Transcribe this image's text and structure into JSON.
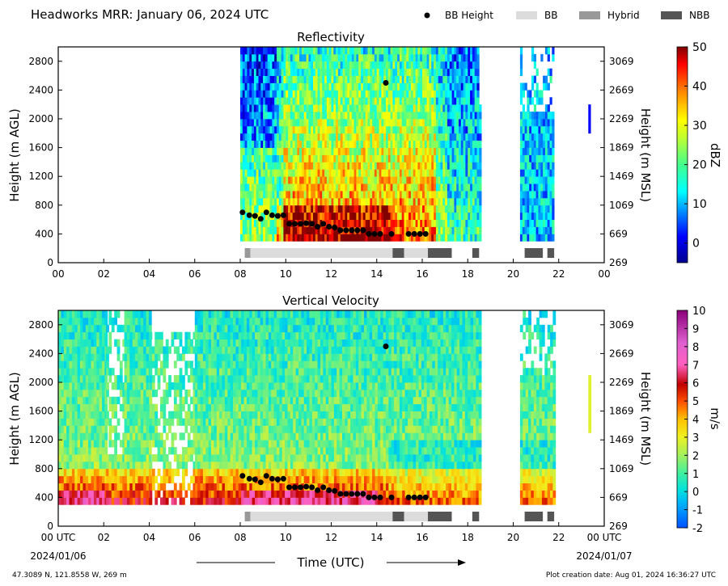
{
  "header": {
    "title": "Headworks MRR:  January 06, 2024 UTC",
    "legend": [
      {
        "label": "BB Height",
        "kind": "marker",
        "color": "#000000"
      },
      {
        "label": "BB",
        "kind": "bar",
        "color": "#dcdcdc"
      },
      {
        "label": "Hybrid",
        "kind": "bar",
        "color": "#999999"
      },
      {
        "label": "NBB",
        "kind": "bar",
        "color": "#555555"
      }
    ]
  },
  "footer": {
    "location": "47.3089 N, 121.8558 W, 269 m",
    "creation": "Plot creation date: Aug 01, 2024 16:36:27 UTC",
    "xlabel": "Time (UTC)",
    "start_tick": "00 UTC",
    "end_tick": "00 UTC",
    "start_date": "2024/01/06",
    "end_date": "2024/01/07"
  },
  "chart_data": [
    {
      "type": "heatmap",
      "title": "Reflectivity",
      "xlabel": "",
      "ylabel": "Height (m AGL)",
      "ylabel_right": "Height (m MSL)",
      "colorbar_label": "dBZ",
      "xlim": [
        0,
        24
      ],
      "ylim": [
        0,
        3000
      ],
      "xticks": [
        "00",
        "02",
        "04",
        "06",
        "08",
        "10",
        "12",
        "14",
        "16",
        "18",
        "20",
        "22",
        "00"
      ],
      "yticks_left": [
        "0",
        "400",
        "800",
        "1200",
        "1600",
        "2000",
        "2400",
        "2800"
      ],
      "yticks_right": [
        "269",
        "669",
        "1069",
        "1469",
        "1869",
        "2269",
        "2669",
        "3069"
      ],
      "colorbar_range": [
        -5,
        50
      ],
      "colorbar_ticks": [
        "0",
        "10",
        "20",
        "30",
        "40",
        "50"
      ]
    },
    {
      "type": "heatmap",
      "title": "Vertical Velocity",
      "xlabel": "Time (UTC)",
      "ylabel": "Height (m AGL)",
      "ylabel_right": "Height (m MSL)",
      "colorbar_label": "m/s",
      "xlim": [
        0,
        24
      ],
      "ylim": [
        0,
        3000
      ],
      "xticks": [
        "00 UTC",
        "02",
        "04",
        "06",
        "08",
        "10",
        "12",
        "14",
        "16",
        "18",
        "20",
        "22",
        "00 UTC"
      ],
      "yticks_left": [
        "0",
        "400",
        "800",
        "1200",
        "1600",
        "2000",
        "2400",
        "2800"
      ],
      "yticks_right": [
        "269",
        "669",
        "1069",
        "1469",
        "1869",
        "2269",
        "2669",
        "3069"
      ],
      "colorbar_range": [
        -2,
        10
      ],
      "colorbar_ticks": [
        "-2",
        "-1",
        "0",
        "1",
        "2",
        "3",
        "4",
        "5",
        "6",
        "7",
        "8",
        "9",
        "10"
      ]
    }
  ],
  "bb_height_points": [
    {
      "time": 8.1,
      "height": 700
    },
    {
      "time": 8.4,
      "height": 660
    },
    {
      "time": 8.65,
      "height": 650
    },
    {
      "time": 8.9,
      "height": 610
    },
    {
      "time": 9.15,
      "height": 700
    },
    {
      "time": 9.4,
      "height": 660
    },
    {
      "time": 9.65,
      "height": 650
    },
    {
      "time": 9.9,
      "height": 660
    },
    {
      "time": 10.15,
      "height": 540
    },
    {
      "time": 10.4,
      "height": 540
    },
    {
      "time": 10.65,
      "height": 540
    },
    {
      "time": 10.9,
      "height": 550
    },
    {
      "time": 11.15,
      "height": 540
    },
    {
      "time": 11.4,
      "height": 500
    },
    {
      "time": 11.65,
      "height": 540
    },
    {
      "time": 11.9,
      "height": 500
    },
    {
      "time": 12.15,
      "height": 490
    },
    {
      "time": 12.4,
      "height": 450
    },
    {
      "time": 12.65,
      "height": 450
    },
    {
      "time": 12.9,
      "height": 450
    },
    {
      "time": 13.15,
      "height": 450
    },
    {
      "time": 13.4,
      "height": 450
    },
    {
      "time": 13.65,
      "height": 400
    },
    {
      "time": 13.9,
      "height": 400
    },
    {
      "time": 14.15,
      "height": 400
    },
    {
      "time": 14.4,
      "height": 2500
    },
    {
      "time": 14.65,
      "height": 400
    },
    {
      "time": 15.4,
      "height": 400
    },
    {
      "time": 15.65,
      "height": 400
    },
    {
      "time": 15.9,
      "height": 400
    },
    {
      "time": 16.15,
      "height": 400
    }
  ],
  "bb_type_segments": [
    {
      "start": 8.2,
      "end": 8.45,
      "type": "Hybrid"
    },
    {
      "start": 8.45,
      "end": 14.7,
      "type": "BB"
    },
    {
      "start": 14.7,
      "end": 15.2,
      "type": "NBB"
    },
    {
      "start": 15.2,
      "end": 16.25,
      "type": "BB"
    },
    {
      "start": 16.25,
      "end": 17.3,
      "type": "NBB"
    },
    {
      "start": 18.2,
      "end": 18.5,
      "type": "NBB"
    },
    {
      "start": 20.5,
      "end": 21.3,
      "type": "NBB"
    },
    {
      "start": 21.5,
      "end": 21.8,
      "type": "NBB"
    }
  ]
}
